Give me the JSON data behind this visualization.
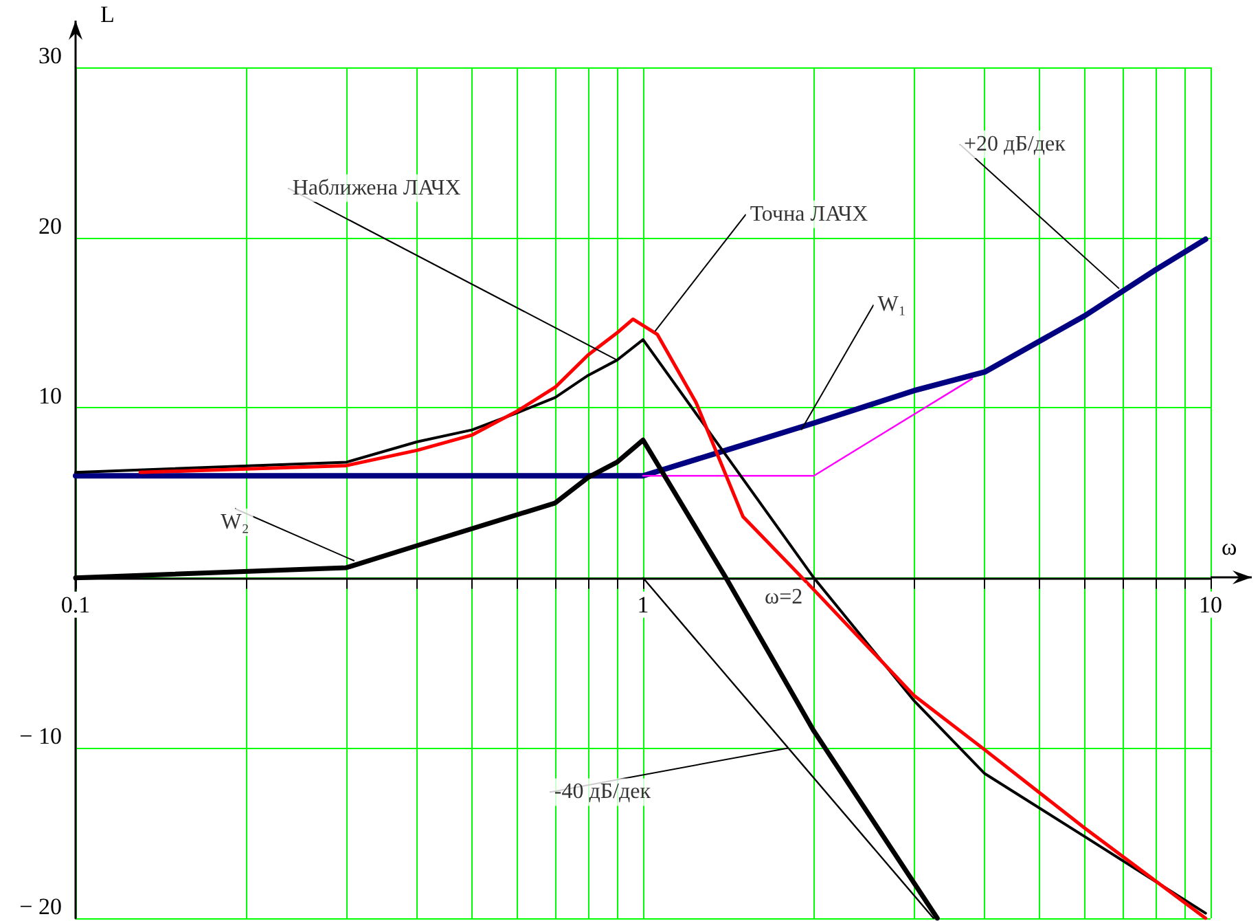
{
  "chart_data": {
    "type": "line",
    "xlabel": "ω",
    "ylabel": "L",
    "log": "x",
    "grid": true,
    "marker": "none",
    "xlim": [
      0.1,
      10
    ],
    "xticks": [
      0.1,
      {
        "value": 0.2,
        "label": null
      },
      {
        "value": 0.3,
        "label": null
      },
      {
        "value": 0.4,
        "label": null
      },
      {
        "value": 0.5,
        "label": null
      },
      {
        "value": 0.6,
        "label": null
      },
      {
        "value": 0.7,
        "label": null
      },
      {
        "value": 0.8,
        "label": null
      },
      {
        "value": 0.9,
        "label": null
      },
      1,
      {
        "value": 2,
        "label": null
      },
      {
        "value": 3,
        "label": null
      },
      {
        "value": 4,
        "label": null
      },
      {
        "value": 5,
        "label": null
      },
      {
        "value": 6,
        "label": null
      },
      {
        "value": 7,
        "label": null
      },
      {
        "value": 8,
        "label": null
      },
      {
        "value": 9,
        "label": null
      },
      10
    ],
    "ylim": [
      -20,
      30
    ],
    "yticks": [
      {
        "value": -20,
        "label": "− 20"
      },
      {
        "value": -10,
        "label": "− 10"
      },
      {
        "value": 0,
        "label": null
      },
      10,
      20,
      30
    ],
    "series": [
      {
        "type": "line",
        "color": "#000080",
        "x": [
          0.1,
          1,
          1.4,
          2,
          3,
          4,
          6,
          8,
          9.8
        ],
        "values": [
          6,
          6,
          7.5,
          9.1,
          11,
          12.1,
          15.4,
          18.1,
          19.9
        ]
      },
      {
        "type": "line",
        "color": "#ff00ff",
        "x": [
          1,
          2,
          3.8
        ],
        "values": [
          6,
          6,
          11.7
        ]
      },
      {
        "type": "line",
        "color": "#000000",
        "x": [
          0.1,
          0.3,
          0.4,
          0.7,
          0.8,
          0.9,
          1,
          1.4,
          2,
          3.3
        ],
        "values": [
          0,
          0.6,
          1.9,
          4.4,
          5.9,
          6.8,
          8.1,
          0,
          -9,
          -20
        ]
      },
      {
        "type": "line",
        "color": "#000000",
        "x": [
          0.1,
          0.3,
          0.4,
          0.5,
          0.6,
          0.7,
          0.8,
          0.9,
          1,
          2,
          3,
          4,
          6,
          9.8
        ],
        "values": [
          6.2,
          6.8,
          8,
          8.7,
          9.7,
          10.6,
          11.9,
          12.8,
          14,
          0,
          -7.2,
          -11.5,
          -15.2,
          -19.7
        ]
      },
      {
        "type": "line",
        "color": "#ff0000",
        "x": [
          0.13,
          0.3,
          0.4,
          0.5,
          0.6,
          0.7,
          0.8,
          0.9,
          0.96,
          1.06,
          1.24,
          1.5,
          2,
          3,
          4,
          6,
          9.8
        ],
        "values": [
          6.2,
          6.6,
          7.5,
          8.4,
          9.8,
          11.2,
          13.1,
          14.4,
          15.2,
          14.3,
          10.3,
          3.6,
          -0.7,
          -6.9,
          -10.1,
          -14.7,
          -20
        ]
      },
      {
        "type": "line",
        "color": "#000000",
        "x": [
          1,
          3.25
        ],
        "values": [
          0,
          -20
        ]
      }
    ],
    "annotations": [
      {
        "text": "Наближена ЛАЧХ",
        "x": 0.9,
        "y": 12.8
      },
      {
        "text": "Точна ЛАЧХ",
        "x": 1.05,
        "y": 14.5
      },
      {
        "text": "W₁",
        "x": 1.9,
        "y": 8.7
      },
      {
        "text": "+20 дБ/дек",
        "x": 6.9,
        "y": 17
      },
      {
        "text": "W₂",
        "x": 0.31,
        "y": 1
      },
      {
        "text": "-40 дБ/дек",
        "x": 1.8,
        "y": -10
      },
      {
        "text": "ω=2",
        "x": 2,
        "y": 0
      }
    ]
  }
}
